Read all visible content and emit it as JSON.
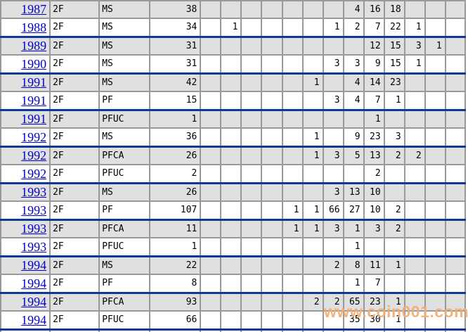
{
  "colors": {
    "row-alt": "#e0e0e0",
    "grid-border": "#999999",
    "separator": "#0b3a9c",
    "link": "#0000cc",
    "watermark": "#f2ad72"
  },
  "watermark": {
    "text": "www.coin001.com"
  },
  "table": {
    "value_column_count": 13,
    "rows": [
      {
        "year": "1987",
        "group": "2F",
        "type": "MS",
        "count": "38",
        "values": [
          "",
          "",
          "",
          "",
          "",
          "",
          "",
          "4",
          "16",
          "18",
          "",
          "",
          ""
        ]
      },
      {
        "year": "1988",
        "group": "2F",
        "type": "MS",
        "count": "34",
        "values": [
          "",
          "1",
          "",
          "",
          "",
          "",
          "1",
          "2",
          "7",
          "22",
          "1",
          "",
          ""
        ]
      },
      {
        "year": "1989",
        "group": "2F",
        "type": "MS",
        "count": "31",
        "values": [
          "",
          "",
          "",
          "",
          "",
          "",
          "",
          "",
          "12",
          "15",
          "3",
          "1",
          ""
        ]
      },
      {
        "year": "1990",
        "group": "2F",
        "type": "MS",
        "count": "31",
        "values": [
          "",
          "",
          "",
          "",
          "",
          "",
          "3",
          "3",
          "9",
          "15",
          "1",
          "",
          ""
        ]
      },
      {
        "year": "1991",
        "group": "2F",
        "type": "MS",
        "count": "42",
        "values": [
          "",
          "",
          "",
          "",
          "",
          "1",
          "",
          "4",
          "14",
          "23",
          "",
          "",
          ""
        ]
      },
      {
        "year": "1991",
        "group": "2F",
        "type": "PF",
        "count": "15",
        "values": [
          "",
          "",
          "",
          "",
          "",
          "",
          "3",
          "4",
          "7",
          "1",
          "",
          "",
          ""
        ]
      },
      {
        "year": "1991",
        "group": "2F",
        "type": "PFUC",
        "count": "1",
        "values": [
          "",
          "",
          "",
          "",
          "",
          "",
          "",
          "",
          "1",
          "",
          "",
          "",
          ""
        ]
      },
      {
        "year": "1992",
        "group": "2F",
        "type": "MS",
        "count": "36",
        "values": [
          "",
          "",
          "",
          "",
          "",
          "1",
          "",
          "9",
          "23",
          "3",
          "",
          "",
          ""
        ]
      },
      {
        "year": "1992",
        "group": "2F",
        "type": "PFCA",
        "count": "26",
        "values": [
          "",
          "",
          "",
          "",
          "",
          "1",
          "3",
          "5",
          "13",
          "2",
          "2",
          "",
          ""
        ]
      },
      {
        "year": "1992",
        "group": "2F",
        "type": "PFUC",
        "count": "2",
        "values": [
          "",
          "",
          "",
          "",
          "",
          "",
          "",
          "",
          "2",
          "",
          "",
          "",
          ""
        ]
      },
      {
        "year": "1993",
        "group": "2F",
        "type": "MS",
        "count": "26",
        "values": [
          "",
          "",
          "",
          "",
          "",
          "",
          "3",
          "13",
          "10",
          "",
          "",
          "",
          ""
        ]
      },
      {
        "year": "1993",
        "group": "2F",
        "type": "PF",
        "count": "107",
        "values": [
          "",
          "",
          "",
          "",
          "1",
          "1",
          "66",
          "27",
          "10",
          "2",
          "",
          "",
          ""
        ]
      },
      {
        "year": "1993",
        "group": "2F",
        "type": "PFCA",
        "count": "11",
        "values": [
          "",
          "",
          "",
          "",
          "1",
          "1",
          "3",
          "1",
          "3",
          "2",
          "",
          "",
          ""
        ]
      },
      {
        "year": "1993",
        "group": "2F",
        "type": "PFUC",
        "count": "1",
        "values": [
          "",
          "",
          "",
          "",
          "",
          "",
          "",
          "1",
          "",
          "",
          "",
          "",
          ""
        ]
      },
      {
        "year": "1994",
        "group": "2F",
        "type": "MS",
        "count": "22",
        "values": [
          "",
          "",
          "",
          "",
          "",
          "",
          "2",
          "8",
          "11",
          "1",
          "",
          "",
          ""
        ]
      },
      {
        "year": "1994",
        "group": "2F",
        "type": "PF",
        "count": "8",
        "values": [
          "",
          "",
          "",
          "",
          "",
          "",
          "",
          "1",
          "7",
          "",
          "",
          "",
          ""
        ]
      },
      {
        "year": "1994",
        "group": "2F",
        "type": "PFCA",
        "count": "93",
        "values": [
          "",
          "",
          "",
          "",
          "",
          "2",
          "2",
          "65",
          "23",
          "1",
          "",
          "",
          ""
        ]
      },
      {
        "year": "1994",
        "group": "2F",
        "type": "PFUC",
        "count": "66",
        "values": [
          "",
          "",
          "",
          "",
          "",
          "",
          "",
          "35",
          "30",
          "1",
          "",
          "",
          ""
        ]
      }
    ]
  }
}
